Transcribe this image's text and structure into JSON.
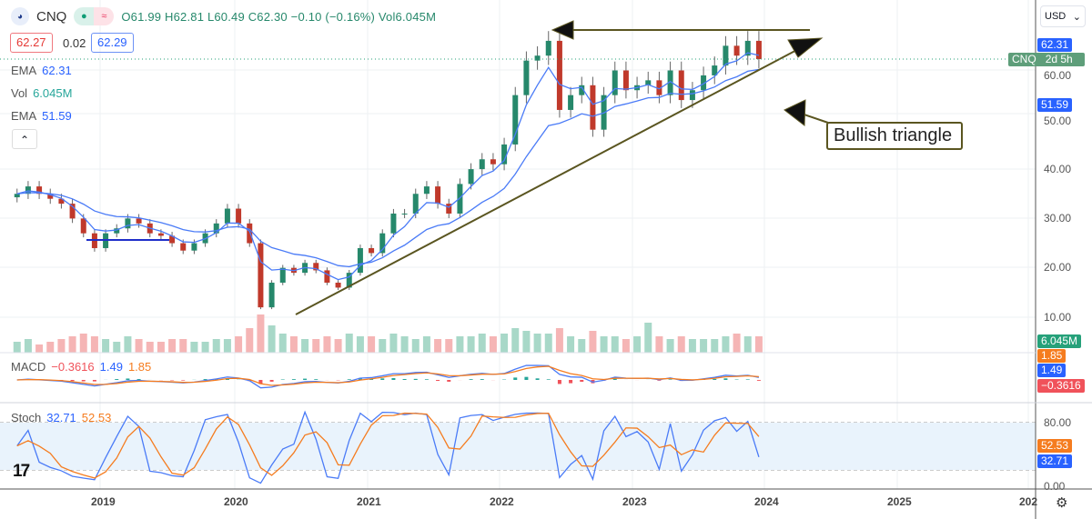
{
  "header": {
    "symbol": "CNQ",
    "open": "O61.99",
    "high": "H62.81",
    "low": "L60.49",
    "close": "C62.30",
    "change": "−0.10 (−0.16%)",
    "volume": "Vol6.045M",
    "bid": "62.27",
    "spread": "0.02",
    "ask": "62.29",
    "logo_icon": "eye-logo-icon",
    "market_open_icon": "dot-icon",
    "realtime_icon": "wave-icon"
  },
  "indicators": {
    "ema1_label": "EMA",
    "ema1_value": "62.31",
    "vol_label": "Vol",
    "vol_value": "6.045M",
    "ema2_label": "EMA",
    "ema2_value": "51.59",
    "macd_label": "MACD",
    "macd_hist": "−0.3616",
    "macd_line": "1.49",
    "macd_signal": "1.85",
    "stoch_label": "Stoch",
    "stoch_k": "32.71",
    "stoch_d": "52.53"
  },
  "axis": {
    "currency": "USD",
    "price_ticks": [
      "60.00",
      "50.00",
      "40.00",
      "30.00",
      "20.00",
      "10.00"
    ],
    "stoch_ticks": [
      "80.00",
      "0.00"
    ],
    "years": [
      "2019",
      "2020",
      "2021",
      "2022",
      "2023",
      "2024",
      "2025",
      "202"
    ],
    "badges": {
      "ema1": "62.31",
      "symbol": "CNQ",
      "countdown": "2d 5h",
      "ema2": "51.59",
      "volume": "6.045M",
      "macd_signal": "1.85",
      "macd_line": "1.49",
      "macd_hist": "−0.3616",
      "stoch_d": "52.53",
      "stoch_k": "32.71"
    }
  },
  "annotation": {
    "label": "Bullish triangle"
  },
  "colors": {
    "up": "#26886b",
    "down": "#c0392b",
    "ema": "#4a7bf7",
    "orange": "#f57c1f",
    "draw": "#5a5520"
  },
  "chart_data": {
    "type": "candlestick",
    "interval": "monthly (approx.)",
    "start": "2018-05",
    "closes": [
      35,
      36.5,
      35,
      34,
      33,
      30,
      27,
      24,
      27,
      28,
      30,
      29,
      27,
      26.5,
      25,
      23.5,
      25,
      27,
      29,
      32,
      29,
      25,
      12,
      17,
      20,
      19,
      21,
      19.5,
      17,
      16,
      19,
      24,
      23,
      27,
      31,
      31,
      35,
      36.5,
      33,
      31,
      37,
      40,
      42,
      41,
      45,
      55,
      62,
      63,
      66,
      52,
      55,
      57,
      48,
      55,
      60,
      56,
      57,
      58,
      55,
      60,
      54,
      56,
      59,
      61,
      65,
      63,
      66,
      62.3
    ],
    "volumes": [
      4,
      5,
      3,
      4,
      5,
      6,
      7,
      6,
      5,
      4,
      6,
      5,
      4,
      4,
      5,
      5,
      4,
      4,
      5,
      5,
      6,
      9,
      14,
      10,
      7,
      6,
      5,
      5,
      6,
      5,
      7,
      6,
      6,
      5,
      7,
      6,
      5,
      6,
      5,
      5,
      6,
      6,
      7,
      6,
      7,
      9,
      8,
      7,
      7,
      9,
      6,
      5,
      8,
      6,
      6,
      5,
      6,
      11,
      6,
      5,
      6,
      5,
      5,
      5,
      6,
      7,
      6,
      6
    ],
    "price_range": [
      5,
      72
    ]
  }
}
